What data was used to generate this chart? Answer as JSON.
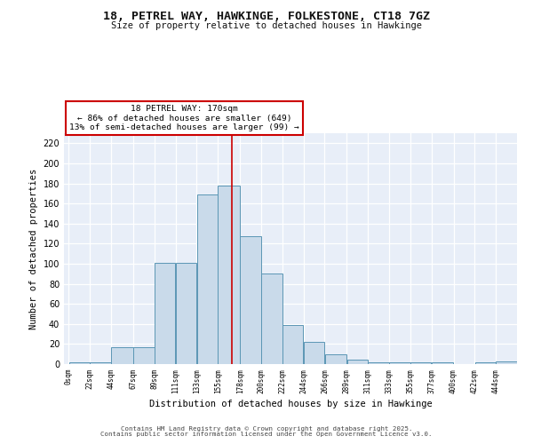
{
  "title1": "18, PETREL WAY, HAWKINGE, FOLKESTONE, CT18 7GZ",
  "title2": "Size of property relative to detached houses in Hawkinge",
  "xlabel": "Distribution of detached houses by size in Hawkinge",
  "ylabel": "Number of detached properties",
  "bin_labels": [
    "0sqm",
    "22sqm",
    "44sqm",
    "67sqm",
    "89sqm",
    "111sqm",
    "133sqm",
    "155sqm",
    "178sqm",
    "200sqm",
    "222sqm",
    "244sqm",
    "266sqm",
    "289sqm",
    "311sqm",
    "333sqm",
    "355sqm",
    "377sqm",
    "400sqm",
    "422sqm",
    "444sqm"
  ],
  "bin_lefts": [
    0,
    22,
    44,
    67,
    89,
    111,
    133,
    155,
    178,
    200,
    222,
    244,
    266,
    289,
    311,
    333,
    355,
    377,
    400,
    422,
    444
  ],
  "bin_widths": [
    22,
    22,
    23,
    22,
    22,
    22,
    22,
    23,
    22,
    22,
    22,
    22,
    23,
    22,
    22,
    22,
    22,
    23,
    22,
    22,
    22
  ],
  "bar_heights": [
    2,
    2,
    17,
    17,
    101,
    101,
    169,
    178,
    127,
    90,
    39,
    22,
    10,
    4,
    2,
    2,
    2,
    2,
    0,
    2,
    3
  ],
  "bar_color": "#c9daea",
  "bar_edgecolor": "#5b96b5",
  "red_line_x": 170,
  "annotation_title": "18 PETREL WAY: 170sqm",
  "annotation_line1": "← 86% of detached houses are smaller (649)",
  "annotation_line2": "13% of semi-detached houses are larger (99) →",
  "annotation_box_edgecolor": "#cc0000",
  "red_line_color": "#cc0000",
  "ylim": [
    0,
    230
  ],
  "yticks": [
    0,
    20,
    40,
    60,
    80,
    100,
    120,
    140,
    160,
    180,
    200,
    220
  ],
  "background_color": "#e8eef8",
  "grid_color": "#ffffff",
  "footer1": "Contains HM Land Registry data © Crown copyright and database right 2025.",
  "footer2": "Contains public sector information licensed under the Open Government Licence v3.0."
}
